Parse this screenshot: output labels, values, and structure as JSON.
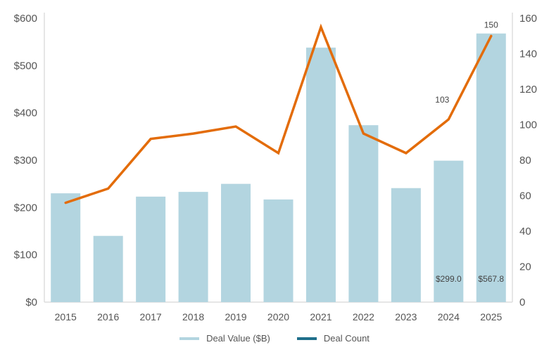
{
  "chart_data": {
    "type": "bar+line",
    "title": "",
    "categories": [
      "2015",
      "2016",
      "2017",
      "2018",
      "2019",
      "2020",
      "2021",
      "2022",
      "2023",
      "2024",
      "2025"
    ],
    "series": [
      {
        "name": "Deal Value ($B)",
        "type": "bar",
        "axis": "left",
        "color": "#b3d5e0",
        "values": [
          230,
          140,
          223,
          233,
          250,
          217,
          538,
          374,
          241,
          299.0,
          567.8
        ]
      },
      {
        "name": "Deal Count",
        "type": "line",
        "axis": "right",
        "color": "#e36c0a",
        "values": [
          56,
          64,
          92,
          95,
          99,
          84,
          155,
          95,
          84,
          103,
          150
        ]
      }
    ],
    "left_axis": {
      "ylim": [
        0,
        600
      ],
      "ticks": [
        "$0",
        "$100",
        "$200",
        "$300",
        "$400",
        "$500",
        "$600"
      ]
    },
    "right_axis": {
      "ylim": [
        0,
        160
      ],
      "ticks": [
        "0",
        "20",
        "40",
        "60",
        "80",
        "100",
        "120",
        "140",
        "160"
      ]
    },
    "annotations": [
      {
        "text": "$299.0",
        "category": "2024",
        "series": "Deal Value ($B)"
      },
      {
        "text": "$567.8",
        "category": "2025",
        "series": "Deal Value ($B)"
      },
      {
        "text": "103",
        "category": "2024",
        "series": "Deal Count"
      },
      {
        "text": "150",
        "category": "2025",
        "series": "Deal Count"
      }
    ],
    "legend": {
      "position": "bottom",
      "entries": [
        {
          "label": "Deal Value ($B)",
          "color": "#b3d5e0"
        },
        {
          "label": "Deal Count",
          "color": "#1f6f8b"
        }
      ]
    },
    "grid": false
  }
}
